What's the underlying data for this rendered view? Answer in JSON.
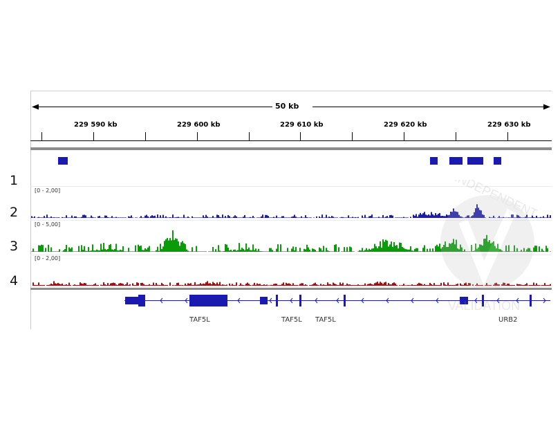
{
  "ruler": {
    "span_label": "50 kb",
    "ticks": [
      "229 590 kb",
      "229 600 kb",
      "229 610 kb",
      "229 620 kb",
      "229 630 kb"
    ]
  },
  "tracks": [
    {
      "row": "1",
      "kind": "feature",
      "color": "#1a1ab0"
    },
    {
      "row": "2",
      "range": "[0 - 2,00]",
      "color": "#1c1ca6"
    },
    {
      "row": "3",
      "range": "[0 - 5,00]",
      "color": "#0a9a0a"
    },
    {
      "row": "4",
      "range": "[0 - 2,00]",
      "color": "#a01010"
    }
  ],
  "genes": {
    "labels": [
      "TAF5L",
      "TAF5L",
      "TAF5L",
      "URB2"
    ],
    "color": "#1a1ab0"
  },
  "watermark": {
    "text_top": "INDEPENDENT",
    "text_bottom": "VALIDATION"
  }
}
